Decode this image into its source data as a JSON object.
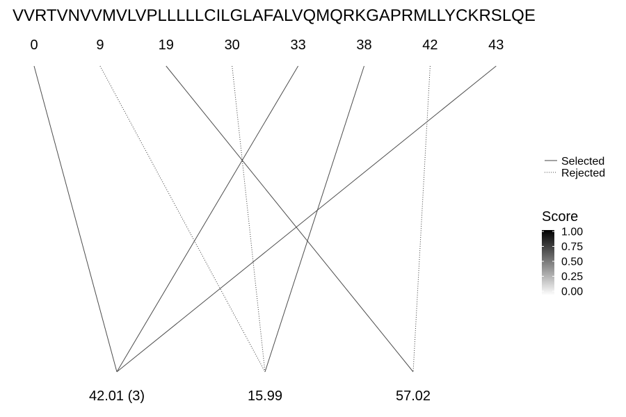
{
  "sequence": "VVRTVNVVMVLVPLLLLLCILGLAFALVQMQRKGAPRMLLYCKRSLQE",
  "positions": [
    "0",
    "9",
    "19",
    "30",
    "33",
    "38",
    "42",
    "43"
  ],
  "masses": [
    "42.01 (3)",
    "15.99",
    "57.02"
  ],
  "edges": [
    {
      "from": "0",
      "to": "42.01 (3)",
      "status": "Selected",
      "score": 0.6
    },
    {
      "from": "9",
      "to": "15.99",
      "status": "Rejected",
      "score": 0.9
    },
    {
      "from": "19",
      "to": "57.02",
      "status": "Selected",
      "score": 0.6
    },
    {
      "from": "30",
      "to": "15.99",
      "status": "Rejected",
      "score": 0.9
    },
    {
      "from": "33",
      "to": "42.01 (3)",
      "status": "Selected",
      "score": 0.6
    },
    {
      "from": "38",
      "to": "15.99",
      "status": "Selected",
      "score": 0.6
    },
    {
      "from": "42",
      "to": "57.02",
      "status": "Rejected",
      "score": 0.6
    },
    {
      "from": "43",
      "to": "42.01 (3)",
      "status": "Selected",
      "score": 0.6
    }
  ],
  "legend": {
    "linetype": [
      {
        "label": "Selected",
        "style": "solid"
      },
      {
        "label": "Rejected",
        "style": "dotted"
      }
    ],
    "score": {
      "title": "Score",
      "ticks": [
        "1.00",
        "0.75",
        "0.50",
        "0.25",
        "0.00"
      ],
      "range": [
        0,
        1
      ],
      "color_low": "#ffffff",
      "color_high": "#000000"
    }
  }
}
